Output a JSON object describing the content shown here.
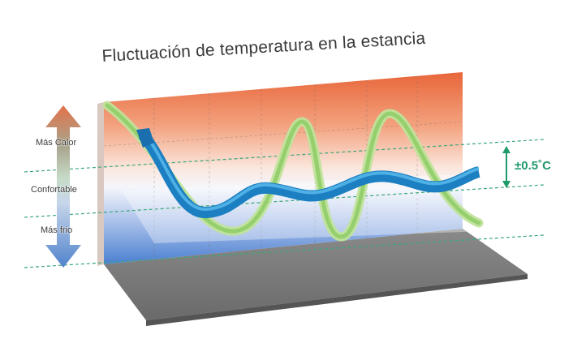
{
  "title": "Fluctuación de temperatura en la estancia",
  "levels": {
    "hot": "Más Calor",
    "comfortable": "Confortable",
    "cold": "Más frio"
  },
  "range": "±0.5˚C",
  "colors": {
    "hot": "#e8683a",
    "cold": "#4a7fd0",
    "conventional_curve": "#a8d880",
    "inverter_curve": "#1b84c8",
    "band_line": "#3aa77a",
    "floor": "#7a7a7a"
  },
  "legend_semantics": {
    "wide_curve": "conventional-fluctuation",
    "narrow_curve": "stable-fluctuation"
  }
}
